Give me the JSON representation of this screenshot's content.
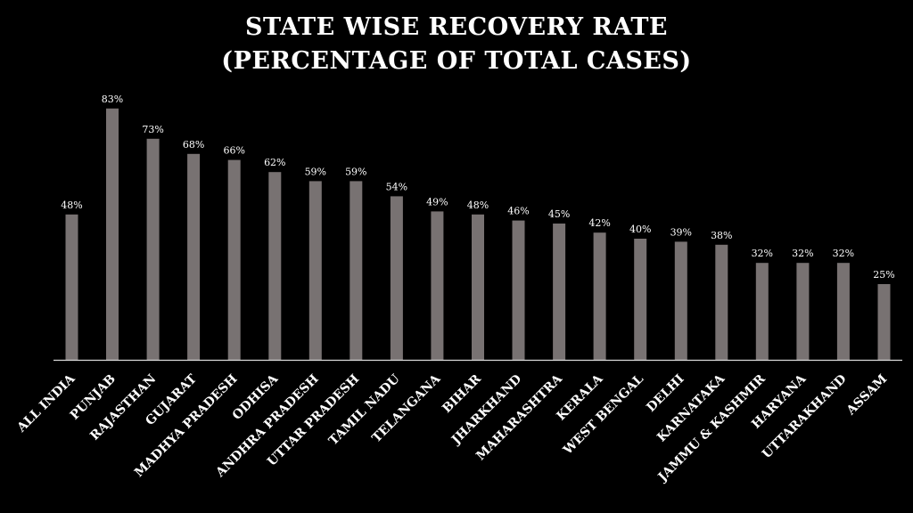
{
  "chart_data": {
    "type": "bar",
    "title_line1": "STATE WISE RECOVERY RATE",
    "title_line2": "(PERCENTAGE OF TOTAL CASES)",
    "xlabel": "",
    "ylabel": "",
    "ylim": [
      0,
      100
    ],
    "grid": false,
    "legend": "none",
    "bar_color": "#787272",
    "axis_color": "#d9d9d9",
    "categories": [
      "ALL INDIA",
      "PUNJAB",
      "RAJASTHAN",
      "GUJARAT",
      "MADHYA PRADESH",
      "ODHISA",
      "ANDHRA PRADESH",
      "UTTAR PRADESH",
      "TAMIL NADU",
      "TELANGANA",
      "BIHAR",
      "JHARKHAND",
      "MAHARASHTRA",
      "KERALA",
      "WEST BENGAL",
      "DELHI",
      "KARNATAKA",
      "JAMMU & KASHMIR",
      "HARYANA",
      "UTTARAKHAND",
      "ASSAM"
    ],
    "values": [
      48,
      83,
      73,
      68,
      66,
      62,
      59,
      59,
      54,
      49,
      48,
      46,
      45,
      42,
      40,
      39,
      38,
      32,
      32,
      32,
      25
    ],
    "data_labels": [
      "48%",
      "83%",
      "73%",
      "68%",
      "66%",
      "62%",
      "59%",
      "59%",
      "54%",
      "49%",
      "48%",
      "46%",
      "45%",
      "42%",
      "40%",
      "39%",
      "38%",
      "32%",
      "32%",
      "32%",
      "25%"
    ]
  }
}
